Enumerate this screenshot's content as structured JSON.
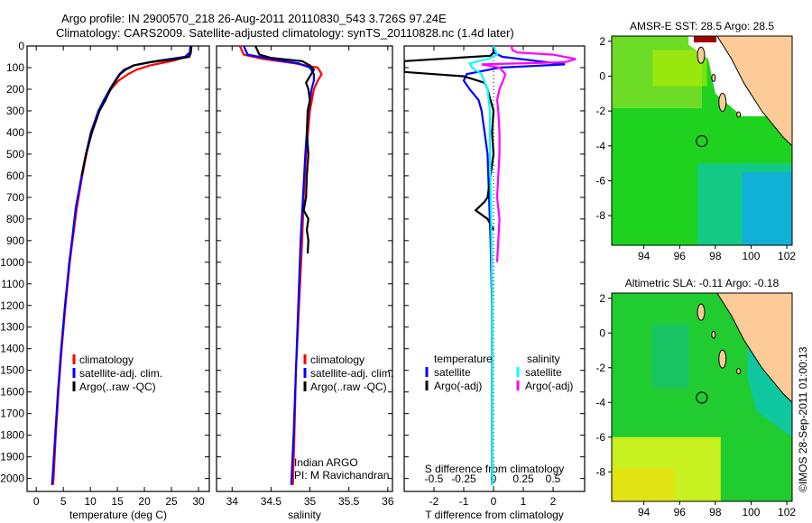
{
  "header": {
    "title_line1": "Argo profile: IN 2900570_218 26-Aug-2011 20110830_543 3.726S 97.24E",
    "title_line2": "Climatology: CARS2009. Satellite-adjusted climatology: synTS_20110828.nc (1.4d later)"
  },
  "colors": {
    "climatology": "#ff0000",
    "satellite": "#0000ff",
    "argo": "#000000",
    "sal_satellite": "#00ffff",
    "sal_argo": "#ff00ff"
  },
  "chart_data": [
    {
      "type": "line",
      "id": "temperature",
      "xlabel": "temperature (deg C)",
      "ylabel": "",
      "xlim": [
        -1.7,
        32
      ],
      "ylim": [
        2060,
        0
      ],
      "xticks": [
        0,
        5,
        10,
        15,
        20,
        25,
        30
      ],
      "xticklabels": [
        "0",
        "5",
        "10",
        "15",
        "20",
        "25",
        "30"
      ],
      "yticks": [
        0,
        100,
        200,
        300,
        400,
        500,
        600,
        700,
        800,
        900,
        1000,
        1100,
        1200,
        1300,
        1400,
        1500,
        1600,
        1700,
        1800,
        1900,
        2000
      ],
      "yticklabels": [
        "0",
        "100",
        "200",
        "300",
        "400",
        "500",
        "600",
        "700",
        "800",
        "900",
        "1000",
        "1100",
        "1200",
        "1300",
        "1400",
        "1500",
        "1600",
        "1700",
        "1800",
        "1900",
        "2000"
      ],
      "legend": [
        "climatology",
        "satellite-adj. clim.",
        "Argo(..raw -QC)"
      ],
      "series": [
        {
          "name": "climatology",
          "color": "#ff0000",
          "depth": [
            0,
            30,
            50,
            70,
            90,
            110,
            130,
            160,
            200,
            250,
            300,
            400,
            500,
            600,
            750,
            900,
            1000,
            1200,
            1400,
            1600,
            1800,
            2000,
            2030
          ],
          "values": [
            28.6,
            28.5,
            27.8,
            25,
            21,
            18.5,
            17,
            15.2,
            13.8,
            12.6,
            11.6,
            10.2,
            9.3,
            8.5,
            7.5,
            6.7,
            6.2,
            5.4,
            4.7,
            4.1,
            3.6,
            3.2,
            3.1
          ]
        },
        {
          "name": "satellite-adj. clim.",
          "color": "#0000ff",
          "depth": [
            0,
            30,
            50,
            70,
            90,
            110,
            130,
            160,
            200,
            250,
            300,
            400,
            500,
            600,
            750,
            900,
            1000,
            1200,
            1400,
            1600,
            1800,
            2000,
            2030
          ],
          "values": [
            28.5,
            28.4,
            27.5,
            22,
            18,
            16.2,
            15.4,
            14.6,
            13.6,
            12.5,
            11.5,
            10.1,
            9.2,
            8.4,
            7.3,
            6.6,
            6.1,
            5.3,
            4.6,
            4.0,
            3.5,
            3.0,
            2.9
          ]
        },
        {
          "name": "Argo(..raw -QC)",
          "color": "#000000",
          "depth": [
            0,
            30,
            50,
            60,
            75,
            90,
            110,
            130,
            160,
            200,
            250,
            300,
            400,
            500,
            600
          ],
          "values": [
            28.7,
            28.6,
            28.3,
            26,
            21,
            18,
            16.5,
            15.5,
            14.7,
            13.7,
            12.8,
            11.7,
            10.3,
            9.2,
            8.4
          ]
        }
      ]
    },
    {
      "type": "line",
      "id": "salinity",
      "xlabel": "salinity",
      "xlim": [
        33.8,
        36.06
      ],
      "ylim": [
        2060,
        0
      ],
      "xticks": [
        34,
        34.5,
        35,
        35.5,
        36
      ],
      "xticklabels": [
        "34",
        "34.5",
        "35",
        "35.5",
        "36"
      ],
      "legend": [
        "climatology",
        "satellite-adj. clim.",
        "Argo(..raw -QC)"
      ],
      "annotation_line1": "Indian ARGO",
      "annotation_line2": "PI: M Ravichandran",
      "series": [
        {
          "name": "climatology",
          "color": "#ff0000",
          "depth": [
            0,
            40,
            60,
            80,
            100,
            130,
            160,
            200,
            300,
            500,
            700,
            900,
            1200,
            1500,
            1800,
            2030
          ],
          "values": [
            34.1,
            34.15,
            34.4,
            34.8,
            35.1,
            35.15,
            35.1,
            35.05,
            35.0,
            34.95,
            34.92,
            34.9,
            34.86,
            34.82,
            34.8,
            34.78
          ]
        },
        {
          "name": "satellite-adj. clim.",
          "color": "#0000ff",
          "depth": [
            0,
            40,
            60,
            80,
            100,
            130,
            160,
            200,
            300,
            500,
            700,
            900,
            1200,
            1500,
            1800,
            2030
          ],
          "values": [
            34.15,
            34.2,
            34.5,
            34.85,
            35.0,
            35.05,
            35.05,
            35.02,
            34.98,
            34.94,
            34.91,
            34.88,
            34.85,
            34.82,
            34.79,
            34.76
          ]
        },
        {
          "name": "Argo(..raw -QC)",
          "color": "#000000",
          "depth": [
            0,
            40,
            55,
            70,
            90,
            110,
            140,
            170,
            200,
            250,
            300,
            400,
            500,
            600,
            700,
            760,
            800,
            850,
            900,
            960
          ],
          "values": [
            34.3,
            34.35,
            34.5,
            34.9,
            35.0,
            35.05,
            35.0,
            34.95,
            34.98,
            35.0,
            34.97,
            34.96,
            34.98,
            34.96,
            34.95,
            34.92,
            34.98,
            34.96,
            34.98,
            34.97
          ]
        }
      ]
    },
    {
      "type": "line",
      "id": "difference",
      "xlabel": "T difference from climatology",
      "x2label": "S difference from climatology",
      "xlim": [
        -3,
        3.06
      ],
      "ylim": [
        2060,
        0
      ],
      "xticks": [
        -2,
        -1,
        0,
        1,
        2
      ],
      "xticklabels": [
        "-2",
        "-1",
        "0",
        "1",
        "2"
      ],
      "x2ticks": [
        -0.5,
        -0.25,
        0,
        0.25,
        0.5
      ],
      "x2ticklabels": [
        "-0.5",
        "-0.25",
        "0",
        "0.25",
        "0.5"
      ],
      "legend_temperature_title": "temperature",
      "legend_salinity_title": "salinity",
      "legend": [
        "satellite",
        "Argo(-adj)",
        "satellite",
        "Argo(-adj)"
      ],
      "series": [
        {
          "name": "T satellite",
          "color": "#0000ff",
          "units": "T",
          "depth": [
            0,
            30,
            50,
            70,
            85,
            100,
            130,
            160,
            200,
            250,
            300,
            400,
            500,
            700,
            900,
            1200,
            1500,
            1800,
            2030
          ],
          "values": [
            0,
            0,
            0.3,
            1.5,
            2.4,
            0.2,
            -0.9,
            -1.0,
            -0.8,
            -0.5,
            -0.4,
            -0.3,
            -0.2,
            -0.15,
            -0.1,
            -0.05,
            -0.05,
            -0.05,
            -0.05
          ]
        },
        {
          "name": "T Argo(-adj)",
          "color": "#000000",
          "units": "T",
          "depth": [
            0,
            30,
            45,
            70,
            100,
            120,
            140,
            170,
            200,
            250,
            300,
            400,
            500,
            600,
            700,
            720,
            760,
            800,
            850
          ],
          "values": [
            0,
            0,
            -0.1,
            -3,
            -3,
            -3,
            -1.0,
            -0.3,
            -0.2,
            -0.1,
            0,
            -0.05,
            0,
            -0.1,
            -0.2,
            -0.3,
            -0.6,
            -0.2,
            0
          ]
        },
        {
          "name": "S satellite",
          "color": "#00ffff",
          "units": "S",
          "depth": [
            0,
            40,
            60,
            80,
            100,
            130,
            160,
            200,
            300,
            500,
            800,
            1200,
            1600,
            2030
          ],
          "values": [
            0,
            0.03,
            -0.05,
            -0.2,
            -0.18,
            -0.1,
            -0.08,
            -0.05,
            -0.03,
            -0.03,
            -0.02,
            -0.01,
            -0.01,
            -0.01
          ]
        },
        {
          "name": "S Argo(-adj)",
          "color": "#ff00ff",
          "units": "S",
          "depth": [
            0,
            20,
            30,
            40,
            60,
            75,
            85,
            100,
            130,
            160,
            200,
            250,
            300,
            400,
            500,
            600,
            700,
            800,
            900,
            1000
          ],
          "values": [
            0.15,
            0.16,
            0.2,
            0.5,
            0.69,
            0.6,
            -0.1,
            0.05,
            0.1,
            0.08,
            0.05,
            0.03,
            0.04,
            0.05,
            0.05,
            0.04,
            0.03,
            0.05,
            0.04,
            0.03
          ]
        }
      ]
    }
  ],
  "maps": {
    "sst": {
      "title": "AMSR-E SST: 28.5 Argo: 28.5",
      "xticklabels": [
        "94",
        "96",
        "98",
        "100",
        "102"
      ],
      "yticklabels": [
        "2",
        "0",
        "-2",
        "-4",
        "-6",
        "-8"
      ],
      "argo_lon": 97.24,
      "argo_lat": -3.726
    },
    "sla": {
      "title": "Altimetric SLA: -0.11 Argo: -0.18",
      "xticklabels": [
        "94",
        "96",
        "98",
        "100",
        "102"
      ],
      "yticklabels": [
        "2",
        "0",
        "-2",
        "-4",
        "-6",
        "-8"
      ],
      "argo_lon": 97.24,
      "argo_lat": -3.726
    },
    "credit": "©IMOS 28-Sep-2011 01:00:13"
  }
}
